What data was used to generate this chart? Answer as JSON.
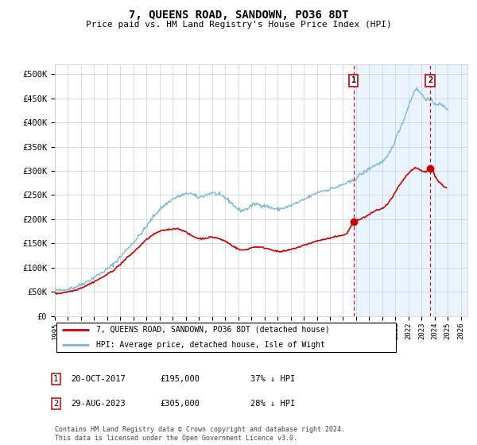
{
  "title": "7, QUEENS ROAD, SANDOWN, PO36 8DT",
  "subtitle": "Price paid vs. HM Land Registry's House Price Index (HPI)",
  "ylabel_ticks": [
    "£0",
    "£50K",
    "£100K",
    "£150K",
    "£200K",
    "£250K",
    "£300K",
    "£350K",
    "£400K",
    "£450K",
    "£500K"
  ],
  "ytick_values": [
    0,
    50000,
    100000,
    150000,
    200000,
    250000,
    300000,
    350000,
    400000,
    450000,
    500000
  ],
  "ylim": [
    0,
    520000
  ],
  "xlim_start": 1995.0,
  "xlim_end": 2026.5,
  "xticks": [
    1995,
    1996,
    1997,
    1998,
    1999,
    2000,
    2001,
    2002,
    2003,
    2004,
    2005,
    2006,
    2007,
    2008,
    2009,
    2010,
    2011,
    2012,
    2013,
    2014,
    2015,
    2016,
    2017,
    2018,
    2019,
    2020,
    2021,
    2022,
    2023,
    2024,
    2025,
    2026
  ],
  "hpi_color": "#7ab8d9",
  "price_color": "#cc0000",
  "shade_color": "#ddeeff",
  "marker1_date": 2017.8,
  "marker1_price": 195000,
  "marker2_date": 2023.66,
  "marker2_price": 305000,
  "legend_line1": "7, QUEENS ROAD, SANDOWN, PO36 8DT (detached house)",
  "legend_line2": "HPI: Average price, detached house, Isle of Wight",
  "footnote": "Contains HM Land Registry data © Crown copyright and database right 2024.\nThis data is licensed under the Open Government Licence v3.0.",
  "background_color": "#ffffff",
  "grid_color": "#cccccc",
  "hpi_keypoints": [
    [
      1995.0,
      52000
    ],
    [
      1995.5,
      53000
    ],
    [
      1996.0,
      56000
    ],
    [
      1996.5,
      59000
    ],
    [
      1997.0,
      65000
    ],
    [
      1997.5,
      72000
    ],
    [
      1998.0,
      80000
    ],
    [
      1998.5,
      88000
    ],
    [
      1999.0,
      97000
    ],
    [
      1999.5,
      108000
    ],
    [
      2000.0,
      122000
    ],
    [
      2000.5,
      138000
    ],
    [
      2001.0,
      152000
    ],
    [
      2001.5,
      168000
    ],
    [
      2002.0,
      185000
    ],
    [
      2002.5,
      205000
    ],
    [
      2003.0,
      220000
    ],
    [
      2003.5,
      232000
    ],
    [
      2004.0,
      242000
    ],
    [
      2004.5,
      248000
    ],
    [
      2005.0,
      252000
    ],
    [
      2005.3,
      255000
    ],
    [
      2005.7,
      248000
    ],
    [
      2006.0,
      245000
    ],
    [
      2006.3,
      248000
    ],
    [
      2006.7,
      252000
    ],
    [
      2007.0,
      255000
    ],
    [
      2007.3,
      252000
    ],
    [
      2007.7,
      248000
    ],
    [
      2008.0,
      245000
    ],
    [
      2008.3,
      238000
    ],
    [
      2008.7,
      228000
    ],
    [
      2009.0,
      220000
    ],
    [
      2009.3,
      218000
    ],
    [
      2009.7,
      222000
    ],
    [
      2010.0,
      228000
    ],
    [
      2010.3,
      232000
    ],
    [
      2010.7,
      230000
    ],
    [
      2011.0,
      228000
    ],
    [
      2011.3,
      226000
    ],
    [
      2011.7,
      222000
    ],
    [
      2012.0,
      220000
    ],
    [
      2012.3,
      222000
    ],
    [
      2012.7,
      225000
    ],
    [
      2013.0,
      228000
    ],
    [
      2013.3,
      232000
    ],
    [
      2013.7,
      236000
    ],
    [
      2014.0,
      240000
    ],
    [
      2014.3,
      245000
    ],
    [
      2014.7,
      250000
    ],
    [
      2015.0,
      255000
    ],
    [
      2015.3,
      258000
    ],
    [
      2015.7,
      260000
    ],
    [
      2016.0,
      262000
    ],
    [
      2016.3,
      265000
    ],
    [
      2016.7,
      268000
    ],
    [
      2017.0,
      272000
    ],
    [
      2017.3,
      275000
    ],
    [
      2017.7,
      278000
    ],
    [
      2018.0,
      285000
    ],
    [
      2018.3,
      292000
    ],
    [
      2018.7,
      298000
    ],
    [
      2019.0,
      305000
    ],
    [
      2019.3,
      310000
    ],
    [
      2019.7,
      315000
    ],
    [
      2020.0,
      318000
    ],
    [
      2020.3,
      325000
    ],
    [
      2020.7,
      345000
    ],
    [
      2021.0,
      365000
    ],
    [
      2021.3,
      385000
    ],
    [
      2021.7,
      410000
    ],
    [
      2022.0,
      435000
    ],
    [
      2022.3,
      455000
    ],
    [
      2022.5,
      470000
    ],
    [
      2022.7,
      468000
    ],
    [
      2023.0,
      458000
    ],
    [
      2023.3,
      450000
    ],
    [
      2023.7,
      445000
    ],
    [
      2024.0,
      440000
    ],
    [
      2024.3,
      438000
    ],
    [
      2024.6,
      435000
    ],
    [
      2024.9,
      430000
    ],
    [
      2025.0,
      428000
    ]
  ],
  "price_keypoints": [
    [
      1995.0,
      46000
    ],
    [
      1995.5,
      47500
    ],
    [
      1996.0,
      50000
    ],
    [
      1996.5,
      53000
    ],
    [
      1997.0,
      58000
    ],
    [
      1997.5,
      64000
    ],
    [
      1998.0,
      71000
    ],
    [
      1998.5,
      78000
    ],
    [
      1999.0,
      86000
    ],
    [
      1999.5,
      95000
    ],
    [
      2000.0,
      107000
    ],
    [
      2000.5,
      120000
    ],
    [
      2001.0,
      132000
    ],
    [
      2001.5,
      145000
    ],
    [
      2002.0,
      158000
    ],
    [
      2002.5,
      168000
    ],
    [
      2003.0,
      175000
    ],
    [
      2003.5,
      178000
    ],
    [
      2004.0,
      180000
    ],
    [
      2004.3,
      181000
    ],
    [
      2004.7,
      178000
    ],
    [
      2005.0,
      173000
    ],
    [
      2005.3,
      168000
    ],
    [
      2005.7,
      163000
    ],
    [
      2006.0,
      160000
    ],
    [
      2006.3,
      160000
    ],
    [
      2006.7,
      162000
    ],
    [
      2007.0,
      163000
    ],
    [
      2007.3,
      162000
    ],
    [
      2007.7,
      158000
    ],
    [
      2008.0,
      155000
    ],
    [
      2008.3,
      150000
    ],
    [
      2008.7,
      143000
    ],
    [
      2009.0,
      138000
    ],
    [
      2009.3,
      136000
    ],
    [
      2009.7,
      138000
    ],
    [
      2010.0,
      141000
    ],
    [
      2010.3,
      143000
    ],
    [
      2010.7,
      142000
    ],
    [
      2011.0,
      141000
    ],
    [
      2011.3,
      139000
    ],
    [
      2011.7,
      136000
    ],
    [
      2012.0,
      133000
    ],
    [
      2012.3,
      133000
    ],
    [
      2012.7,
      135000
    ],
    [
      2013.0,
      137000
    ],
    [
      2013.3,
      140000
    ],
    [
      2013.7,
      143000
    ],
    [
      2014.0,
      146000
    ],
    [
      2014.3,
      149000
    ],
    [
      2014.7,
      152000
    ],
    [
      2015.0,
      155000
    ],
    [
      2015.3,
      157000
    ],
    [
      2015.7,
      159000
    ],
    [
      2016.0,
      161000
    ],
    [
      2016.3,
      163000
    ],
    [
      2016.7,
      165000
    ],
    [
      2017.0,
      168000
    ],
    [
      2017.3,
      170000
    ],
    [
      2017.8,
      195000
    ],
    [
      2018.0,
      197000
    ],
    [
      2018.3,
      200000
    ],
    [
      2018.7,
      205000
    ],
    [
      2019.0,
      210000
    ],
    [
      2019.3,
      215000
    ],
    [
      2019.7,
      220000
    ],
    [
      2020.0,
      222000
    ],
    [
      2020.3,
      228000
    ],
    [
      2020.7,
      242000
    ],
    [
      2021.0,
      256000
    ],
    [
      2021.3,
      270000
    ],
    [
      2021.7,
      285000
    ],
    [
      2022.0,
      295000
    ],
    [
      2022.3,
      302000
    ],
    [
      2022.5,
      306000
    ],
    [
      2022.7,
      305000
    ],
    [
      2023.0,
      300000
    ],
    [
      2023.3,
      298000
    ],
    [
      2023.66,
      305000
    ],
    [
      2023.9,
      300000
    ],
    [
      2024.0,
      290000
    ],
    [
      2024.3,
      278000
    ],
    [
      2024.6,
      270000
    ],
    [
      2024.9,
      265000
    ]
  ]
}
